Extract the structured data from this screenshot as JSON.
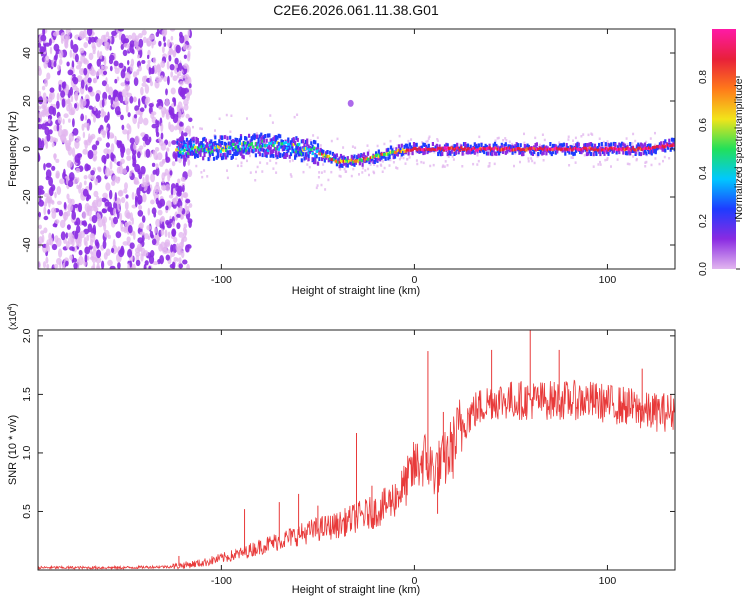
{
  "title": "C2E6.2026.061.11.38.G01",
  "colors": {
    "axis": "#222222",
    "snr_line": "#e83a3a",
    "colorbar_stops": [
      "#e2b6ef",
      "#8a2be2",
      "#1e3cff",
      "#00c8ff",
      "#22e05a",
      "#f2e41a",
      "#ff7a1a",
      "#e8203a",
      "#ff1aa6"
    ]
  },
  "chart_data": [
    {
      "type": "heatmap",
      "name": "spectrogram",
      "xlabel": "Height of straight line (km)",
      "ylabel": "Frequency (Hz)",
      "xlim": [
        -195,
        135
      ],
      "ylim": [
        -50,
        50
      ],
      "xticks": [
        {
          "value": -100,
          "label": "-100"
        },
        {
          "value": 0,
          "label": "0"
        },
        {
          "value": 100,
          "label": "100"
        }
      ],
      "yticks": [
        {
          "value": -40,
          "label": "-40"
        },
        {
          "value": -20,
          "label": "-20"
        },
        {
          "value": 0,
          "label": "0"
        },
        {
          "value": 20,
          "label": "20"
        },
        {
          "value": 40,
          "label": "40"
        }
      ],
      "noise_region_x": [
        -195,
        -116
      ],
      "ridge": {
        "x": [
          -122,
          -112,
          -100,
          -90,
          -80,
          -70,
          -60,
          -50,
          -40,
          -30,
          -20,
          -10,
          0,
          10,
          20,
          40,
          60,
          80,
          100,
          120,
          135
        ],
        "freq": [
          0,
          0,
          0.5,
          1,
          1.5,
          1,
          0,
          -2,
          -5,
          -5,
          -3,
          -1,
          0,
          0,
          0,
          0,
          0,
          0,
          0,
          0,
          2
        ]
      },
      "colorbar": {
        "label": "Normalized spectral amplitude",
        "range": [
          0,
          1
        ],
        "ticks": [
          {
            "value": 0,
            "label": "0.0"
          },
          {
            "value": 0.2,
            "label": "0.2"
          },
          {
            "value": 0.4,
            "label": "0.4"
          },
          {
            "value": 0.6,
            "label": "0.6"
          },
          {
            "value": 0.8,
            "label": "0.8"
          }
        ]
      }
    },
    {
      "type": "line",
      "name": "snr",
      "xlabel": "Height of straight line (km)",
      "ylabel": "SNR (10 * v/v)",
      "scale_label": "(x10",
      "scale_exp": "4",
      "scale_close": ")",
      "xlim": [
        -195,
        135
      ],
      "ylim": [
        0,
        2.05
      ],
      "xticks": [
        {
          "value": -100,
          "label": "-100"
        },
        {
          "value": 0,
          "label": "0"
        },
        {
          "value": 100,
          "label": "100"
        }
      ],
      "yticks": [
        {
          "value": 0.5,
          "label": "0.5"
        },
        {
          "value": 1.0,
          "label": "1.0"
        },
        {
          "value": 1.5,
          "label": "1.5"
        },
        {
          "value": 2.0,
          "label": "2.0"
        }
      ],
      "envelope": {
        "x": [
          -195,
          -150,
          -125,
          -110,
          -100,
          -90,
          -80,
          -70,
          -60,
          -50,
          -40,
          -30,
          -20,
          -15,
          -10,
          -5,
          0,
          5,
          10,
          15,
          20,
          25,
          30,
          40,
          50,
          60,
          70,
          80,
          90,
          100,
          110,
          120,
          135
        ],
        "y": [
          0.02,
          0.02,
          0.03,
          0.06,
          0.1,
          0.14,
          0.2,
          0.25,
          0.3,
          0.35,
          0.38,
          0.45,
          0.5,
          0.55,
          0.62,
          0.72,
          0.88,
          0.95,
          0.85,
          0.92,
          1.05,
          1.25,
          1.35,
          1.45,
          1.45,
          1.45,
          1.45,
          1.45,
          1.45,
          1.42,
          1.4,
          1.35,
          1.35
        ]
      },
      "spikes": [
        {
          "x": -122,
          "y": 0.12
        },
        {
          "x": -88,
          "y": 0.52
        },
        {
          "x": -70,
          "y": 0.58
        },
        {
          "x": -60,
          "y": 0.65
        },
        {
          "x": -50,
          "y": 0.55
        },
        {
          "x": -30,
          "y": 1.17
        },
        {
          "x": -22,
          "y": 0.72
        },
        {
          "x": 0,
          "y": 1.02
        },
        {
          "x": 7,
          "y": 1.87
        },
        {
          "x": 12,
          "y": 0.48
        },
        {
          "x": 15,
          "y": 1.35
        },
        {
          "x": 40,
          "y": 1.88
        },
        {
          "x": 60,
          "y": 2.05
        },
        {
          "x": 75,
          "y": 1.88
        },
        {
          "x": 118,
          "y": 1.72
        }
      ]
    }
  ]
}
